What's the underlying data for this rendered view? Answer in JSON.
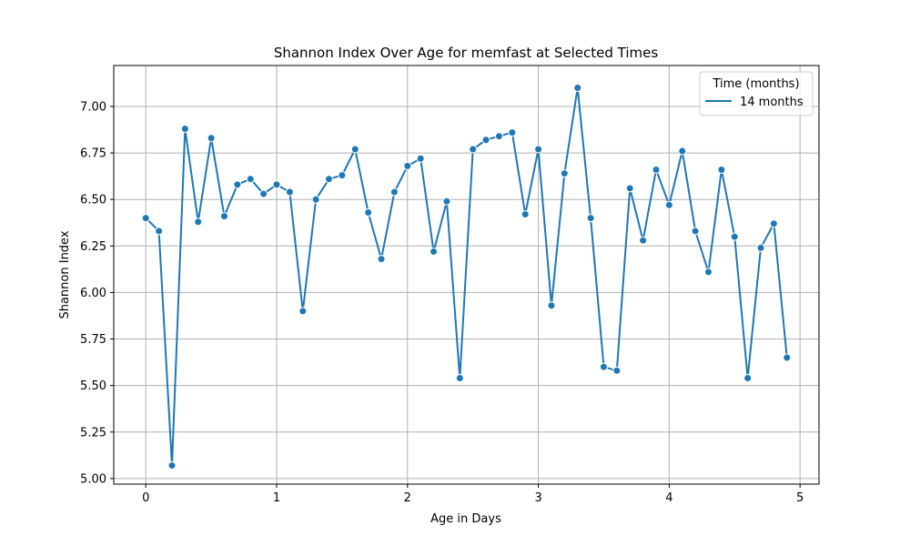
{
  "chart_data": {
    "type": "line",
    "title": "Shannon Index Over Age for memfast at Selected Times",
    "xlabel": "Age in Days",
    "ylabel": "Shannon Index",
    "xlim": [
      -0.245,
      5.145
    ],
    "ylim": [
      4.97,
      7.22
    ],
    "xticks": [
      0,
      1,
      2,
      3,
      4,
      5
    ],
    "xtick_labels": [
      "0",
      "1",
      "2",
      "3",
      "4",
      "5"
    ],
    "yticks": [
      5.0,
      5.25,
      5.5,
      5.75,
      6.0,
      6.25,
      6.5,
      6.75,
      7.0
    ],
    "ytick_labels": [
      "5.00",
      "5.25",
      "5.50",
      "5.75",
      "6.00",
      "6.25",
      "6.50",
      "6.75",
      "7.00"
    ],
    "grid": true,
    "legend": {
      "title": "Time (months)",
      "placement": "top-right"
    },
    "series": [
      {
        "name": "14 months",
        "color": "#1f77b4",
        "marker": "circle",
        "x": [
          0.0,
          0.1,
          0.2,
          0.3,
          0.4,
          0.5,
          0.6,
          0.7,
          0.8,
          0.9,
          1.0,
          1.1,
          1.2,
          1.3,
          1.4,
          1.5,
          1.6,
          1.7,
          1.8,
          1.9,
          2.0,
          2.1,
          2.2,
          2.3,
          2.4,
          2.5,
          2.6,
          2.7,
          2.8,
          2.9,
          3.0,
          3.1,
          3.2,
          3.3,
          3.4,
          3.5,
          3.6,
          3.7,
          3.8,
          3.9,
          4.0,
          4.1,
          4.2,
          4.3,
          4.4,
          4.5,
          4.6,
          4.7,
          4.8,
          4.9
        ],
        "y": [
          6.4,
          6.33,
          5.07,
          6.88,
          6.38,
          6.83,
          6.41,
          6.58,
          6.61,
          6.53,
          6.58,
          6.54,
          5.9,
          6.5,
          6.61,
          6.63,
          6.77,
          6.43,
          6.18,
          6.54,
          6.68,
          6.72,
          6.22,
          6.49,
          5.54,
          6.77,
          6.82,
          6.84,
          6.86,
          6.42,
          6.77,
          5.93,
          6.64,
          7.1,
          6.4,
          5.6,
          5.58,
          6.56,
          6.28,
          6.66,
          6.47,
          6.76,
          6.33,
          6.11,
          6.66,
          6.3,
          5.54,
          6.24,
          6.37,
          5.65
        ]
      }
    ]
  }
}
